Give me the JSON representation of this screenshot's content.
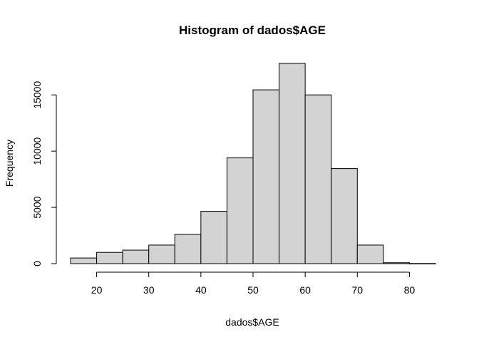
{
  "chart_data": {
    "type": "bar",
    "title": "Histogram of dados$AGE",
    "xlabel": "dados$AGE",
    "ylabel": "Frequency",
    "bin_edges": [
      15,
      20,
      25,
      30,
      35,
      40,
      45,
      50,
      55,
      60,
      65,
      70,
      75,
      80,
      85
    ],
    "values": [
      500,
      1000,
      1200,
      1650,
      2600,
      4650,
      9400,
      15450,
      17800,
      15000,
      8450,
      1650,
      80,
      10
    ],
    "xlim": [
      15,
      85
    ],
    "ylim": [
      0,
      17800
    ],
    "x_ticks": [
      20,
      30,
      40,
      50,
      60,
      70,
      80
    ],
    "y_ticks": [
      0,
      5000,
      10000,
      15000
    ],
    "grid": false,
    "legend": "none",
    "colors": {
      "bar_fill": "#d3d3d3",
      "bar_stroke": "#000000"
    }
  }
}
